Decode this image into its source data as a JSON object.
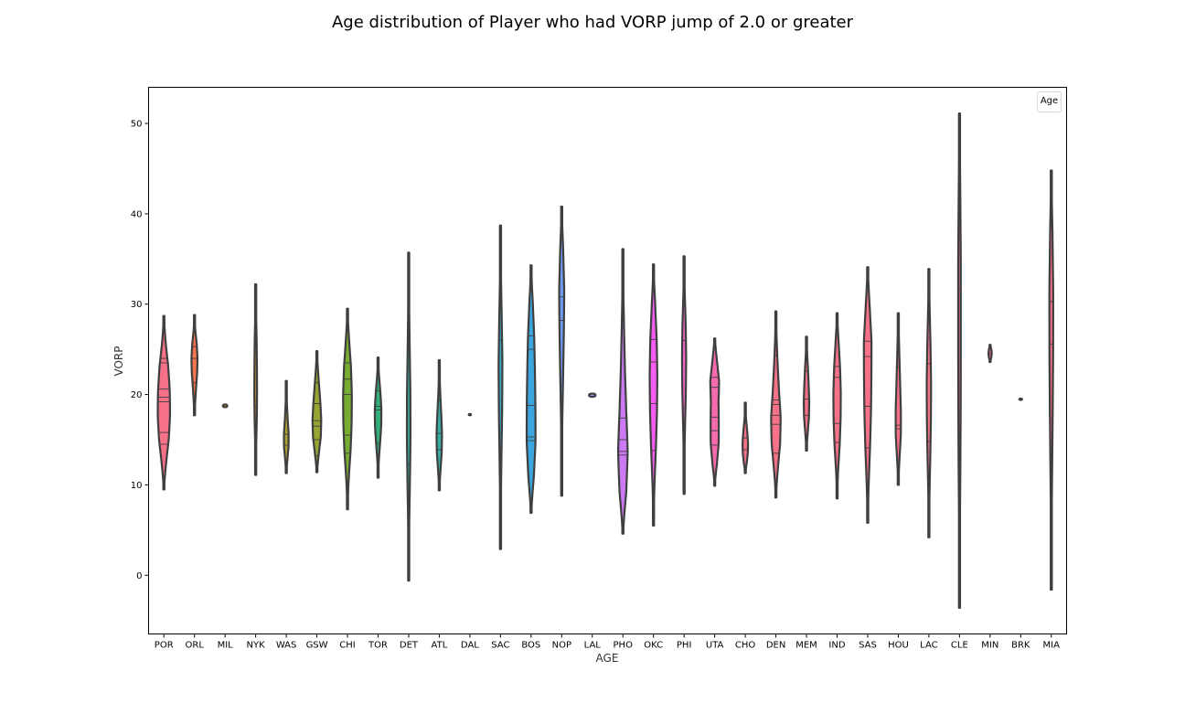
{
  "chart_data": {
    "type": "violin",
    "title": "Age distribution of Player who had VORP jump of 2.0 or greater",
    "xlabel": "AGE",
    "ylabel": "VORP",
    "ylim": [
      -6.5,
      54
    ],
    "yticks": [
      0,
      10,
      20,
      30,
      40,
      50
    ],
    "legend": {
      "title": "Age",
      "placement": "top-right"
    },
    "grid": false,
    "categories": [
      "POR",
      "ORL",
      "MIL",
      "NYK",
      "WAS",
      "GSW",
      "CHI",
      "TOR",
      "DET",
      "ATL",
      "DAL",
      "SAC",
      "BOS",
      "NOP",
      "LAL",
      "PHO",
      "OKC",
      "PHI",
      "UTA",
      "CHO",
      "DEN",
      "MEM",
      "IND",
      "SAS",
      "HOU",
      "LAC",
      "CLE",
      "MIN",
      "BRK",
      "MIA"
    ],
    "colors": [
      "#f77189",
      "#f7754f",
      "#dc8932",
      "#c39532",
      "#ae9d31",
      "#97a431",
      "#77ab31",
      "#33b07a",
      "#35ad9c",
      "#36ada4",
      "#37abb4",
      "#38a9c5",
      "#3aa5df",
      "#6e9bf4",
      "#a48cf4",
      "#cc7af4",
      "#f45cf2",
      "#f565cc",
      "#f66bad",
      "#f77189",
      "#f77189",
      "#f77189",
      "#f77189",
      "#f77189",
      "#f77189",
      "#f77189",
      "#f77189",
      "#f77189",
      "#f77189",
      "#f77189"
    ],
    "series": [
      {
        "category": "POR",
        "min": 9.5,
        "max": 28.7,
        "w": 0.45,
        "shape": [
          0.08,
          0.45,
          0.85,
          1,
          0.95,
          0.75,
          0.35,
          0.05
        ],
        "quartiles": [
          14.5,
          15.8,
          19.2,
          19.7,
          20.6,
          23.5,
          24.0
        ]
      },
      {
        "category": "ORL",
        "min": 17.7,
        "max": 28.8,
        "w": 0.22,
        "shape": [
          0.1,
          0.35,
          0.6,
          0.9,
          1,
          0.8,
          0.35,
          0.05
        ],
        "quartiles": [
          21.3,
          24.0,
          25.3
        ]
      },
      {
        "category": "MIL",
        "min": 18.6,
        "max": 18.9,
        "w": 0.16,
        "shape": [
          1,
          1,
          1
        ],
        "quartiles": []
      },
      {
        "category": "NYK",
        "min": 11.1,
        "max": 32.2,
        "w": 0.1,
        "shape": [
          0.1,
          0.45,
          0.85,
          1,
          0.9,
          0.75,
          0.35,
          0.05
        ],
        "quartiles": [
          18.7,
          24.7
        ]
      },
      {
        "category": "WAS",
        "min": 11.3,
        "max": 21.5,
        "w": 0.18,
        "shape": [
          0.15,
          0.6,
          1,
          0.95,
          0.6,
          0.35,
          0.15,
          0.05
        ],
        "quartiles": [
          12.5,
          14.4,
          15.6,
          18.4
        ]
      },
      {
        "category": "GSW",
        "min": 11.4,
        "max": 24.8,
        "w": 0.32,
        "shape": [
          0.12,
          0.55,
          0.95,
          1,
          0.8,
          0.55,
          0.3,
          0.05
        ],
        "quartiles": [
          13.2,
          15.0,
          16.5,
          17.1,
          19.0,
          21.3
        ]
      },
      {
        "category": "CHI",
        "min": 7.3,
        "max": 29.5,
        "w": 0.32,
        "shape": [
          0.05,
          0.35,
          0.75,
          0.95,
          1,
          0.85,
          0.45,
          0.05
        ],
        "quartiles": [
          13.5,
          15.5,
          20.0,
          21.7,
          23.5
        ]
      },
      {
        "category": "TOR",
        "min": 10.8,
        "max": 24.1,
        "w": 0.24,
        "shape": [
          0.05,
          0.3,
          0.65,
          0.95,
          1,
          0.75,
          0.35,
          0.05
        ],
        "quartiles": [
          14.6,
          18.3,
          18.7,
          20.4
        ]
      },
      {
        "category": "DET",
        "min": -0.6,
        "max": 35.7,
        "w": 0.13,
        "shape": [
          0.05,
          0.3,
          0.7,
          1,
          0.95,
          0.6,
          0.3,
          0.05
        ],
        "quartiles": [
          12.3,
          22.9
        ]
      },
      {
        "category": "ATL",
        "min": 9.4,
        "max": 23.8,
        "w": 0.2,
        "shape": [
          0.1,
          0.55,
          0.95,
          1,
          0.75,
          0.45,
          0.2,
          0.05
        ],
        "quartiles": [
          13.9,
          15.7,
          19.4
        ]
      },
      {
        "category": "DAL",
        "min": 17.7,
        "max": 17.85,
        "w": 0.08,
        "shape": [
          1,
          1,
          1
        ],
        "quartiles": []
      },
      {
        "category": "SAC",
        "min": 2.9,
        "max": 38.7,
        "w": 0.14,
        "shape": [
          0.05,
          0.25,
          0.55,
          0.85,
          1,
          0.7,
          0.3,
          0.05
        ],
        "quartiles": [
          15.6,
          26.0
        ]
      },
      {
        "category": "BOS",
        "min": 6.9,
        "max": 34.3,
        "w": 0.35,
        "shape": [
          0.15,
          0.75,
          1,
          0.9,
          0.8,
          0.7,
          0.45,
          0.05
        ],
        "quartiles": [
          14.9,
          15.3,
          18.8,
          25.0,
          26.5
        ]
      },
      {
        "category": "NOP",
        "min": 8.8,
        "max": 40.8,
        "w": 0.2,
        "shape": [
          0.03,
          0.1,
          0.3,
          0.55,
          0.8,
          1,
          0.7,
          0.1
        ],
        "quartiles": [
          18.8,
          28.2,
          30.8
        ]
      },
      {
        "category": "LAL",
        "min": 19.75,
        "max": 20.1,
        "w": 0.24,
        "shape": [
          1,
          1,
          1
        ],
        "quartiles": []
      },
      {
        "category": "PHO",
        "min": 4.6,
        "max": 36.1,
        "w": 0.38,
        "shape": [
          0.15,
          0.85,
          1,
          0.65,
          0.4,
          0.25,
          0.12,
          0.03
        ],
        "quartiles": [
          13.3,
          13.7,
          15.0,
          17.4,
          27.5
        ]
      },
      {
        "category": "OKC",
        "min": 5.5,
        "max": 34.4,
        "w": 0.28,
        "shape": [
          0.05,
          0.3,
          0.65,
          0.9,
          1,
          0.9,
          0.55,
          0.05
        ],
        "quartiles": [
          13.8,
          19.0,
          23.6,
          26.1
        ]
      },
      {
        "category": "PHI",
        "min": 9.0,
        "max": 35.3,
        "w": 0.15,
        "shape": [
          0.05,
          0.2,
          0.5,
          0.85,
          1,
          0.85,
          0.4,
          0.05
        ],
        "quartiles": [
          18.5,
          26.0
        ]
      },
      {
        "category": "UTA",
        "min": 9.9,
        "max": 26.2,
        "w": 0.35,
        "shape": [
          0.05,
          0.6,
          0.9,
          0.85,
          0.8,
          1,
          0.6,
          0.15
        ],
        "quartiles": [
          14.4,
          16.0,
          17.5,
          20.8,
          21.9
        ]
      },
      {
        "category": "CHO",
        "min": 11.3,
        "max": 19.1,
        "w": 0.2,
        "shape": [
          0.15,
          0.7,
          1,
          1,
          0.75,
          0.45,
          0.15,
          0.02
        ],
        "quartiles": [
          13.9,
          15.2,
          16.8
        ]
      },
      {
        "category": "DEN",
        "min": 8.6,
        "max": 29.2,
        "w": 0.35,
        "shape": [
          0.05,
          0.5,
          0.95,
          1,
          0.65,
          0.4,
          0.2,
          0.05
        ],
        "quartiles": [
          13.5,
          16.7,
          17.7,
          18.9,
          19.4,
          24.3
        ]
      },
      {
        "category": "MEM",
        "min": 13.8,
        "max": 26.4,
        "w": 0.2,
        "shape": [
          0.1,
          0.55,
          0.95,
          1,
          0.8,
          0.6,
          0.3,
          0.05
        ],
        "quartiles": [
          17.7,
          19.5,
          22.6
        ]
      },
      {
        "category": "IND",
        "min": 8.5,
        "max": 29.0,
        "w": 0.27,
        "shape": [
          0.05,
          0.35,
          0.75,
          0.95,
          1,
          0.85,
          0.5,
          0.05
        ],
        "quartiles": [
          14.7,
          16.8,
          21.9,
          23.1
        ]
      },
      {
        "category": "SAS",
        "min": 5.8,
        "max": 34.1,
        "w": 0.3,
        "shape": [
          0.05,
          0.3,
          0.6,
          0.8,
          0.9,
          1,
          0.6,
          0.1
        ],
        "quartiles": [
          14.1,
          18.7,
          24.2,
          25.9
        ]
      },
      {
        "category": "HOU",
        "min": 10.0,
        "max": 29.0,
        "w": 0.2,
        "shape": [
          0.1,
          0.55,
          1,
          0.95,
          0.7,
          0.5,
          0.3,
          0.05
        ],
        "quartiles": [
          16.2,
          16.6,
          23.0
        ]
      },
      {
        "category": "LAC",
        "min": 4.2,
        "max": 33.9,
        "w": 0.16,
        "shape": [
          0.05,
          0.3,
          0.65,
          0.9,
          1,
          0.8,
          0.45,
          0.05
        ],
        "quartiles": [
          14.8,
          23.4
        ]
      },
      {
        "category": "CLE",
        "min": -3.6,
        "max": 51.1,
        "w": 0.1,
        "shape": [
          0.05,
          0.35,
          0.7,
          0.9,
          0.95,
          1,
          0.7,
          0.1
        ],
        "quartiles": [
          15.7,
          31.6
        ]
      },
      {
        "category": "MIN",
        "min": 23.6,
        "max": 25.5,
        "w": 0.12,
        "shape": [
          0.2,
          0.8,
          1,
          0.8,
          0.2
        ],
        "quartiles": [
          24.5
        ]
      },
      {
        "category": "BRK",
        "min": 19.4,
        "max": 19.55,
        "w": 0.1,
        "shape": [
          1,
          1,
          1
        ],
        "quartiles": []
      },
      {
        "category": "MIA",
        "min": -1.6,
        "max": 44.8,
        "w": 0.15,
        "shape": [
          0.05,
          0.2,
          0.45,
          0.7,
          0.9,
          1,
          0.75,
          0.15
        ],
        "quartiles": [
          12.9,
          25.6,
          30.3
        ]
      }
    ]
  }
}
